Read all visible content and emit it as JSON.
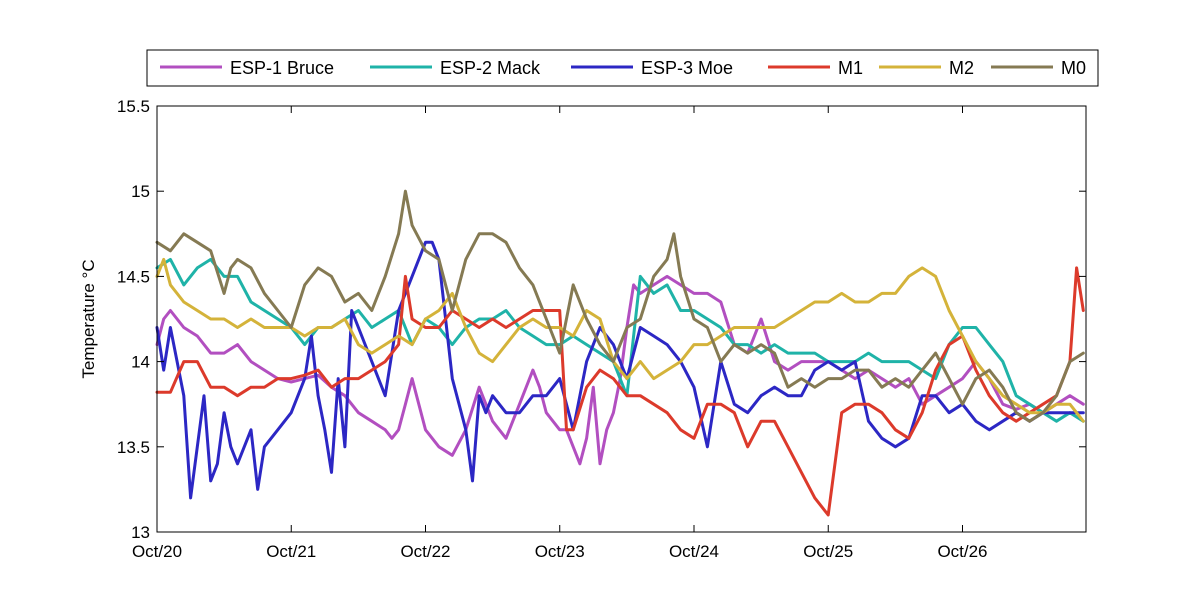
{
  "chart_data": {
    "type": "line",
    "title": "",
    "xlabel": "",
    "ylabel": "Temperature °C",
    "xlim": [
      "Oct/20",
      "Oct/26 ~22:00"
    ],
    "ylim": [
      13,
      15.5
    ],
    "yticks": [
      13,
      13.5,
      14,
      14.5,
      15,
      15.5
    ],
    "ytick_labels": [
      "13",
      "13.5",
      "14",
      "14.5",
      "15",
      "15.5"
    ],
    "xticks": [
      0,
      1,
      2,
      3,
      4,
      5,
      6
    ],
    "xtick_labels": [
      "Oct/20",
      "Oct/21",
      "Oct/22",
      "Oct/23",
      "Oct/24",
      "Oct/25",
      "Oct/26"
    ],
    "grid": false,
    "legend": {
      "placement": "top, outside plot, horizontal"
    },
    "series": [
      {
        "name": "ESP-1 Bruce",
        "color": "#b24fc0",
        "x": [
          0,
          0.05,
          0.1,
          0.2,
          0.3,
          0.4,
          0.5,
          0.6,
          0.7,
          0.8,
          0.9,
          1.0,
          1.1,
          1.2,
          1.3,
          1.4,
          1.5,
          1.6,
          1.7,
          1.75,
          1.8,
          1.85,
          1.9,
          2.0,
          2.1,
          2.2,
          2.3,
          2.4,
          2.5,
          2.6,
          2.7,
          2.8,
          2.85,
          2.9,
          3.0,
          3.05,
          3.1,
          3.15,
          3.2,
          3.25,
          3.3,
          3.35,
          3.4,
          3.45,
          3.5,
          3.55,
          3.6,
          3.7,
          3.8,
          3.9,
          4.0,
          4.1,
          4.2,
          4.3,
          4.4,
          4.5,
          4.6,
          4.7,
          4.8,
          4.9,
          5.0,
          5.1,
          5.2,
          5.3,
          5.4,
          5.5,
          5.6,
          5.7,
          5.8,
          5.9,
          6.0,
          6.1,
          6.2,
          6.3,
          6.4,
          6.5,
          6.6,
          6.7,
          6.8,
          6.9
        ],
        "y": [
          14.1,
          14.25,
          14.3,
          14.2,
          14.15,
          14.05,
          14.05,
          14.1,
          14.0,
          13.95,
          13.9,
          13.88,
          13.9,
          13.92,
          13.85,
          13.8,
          13.7,
          13.65,
          13.6,
          13.55,
          13.6,
          13.75,
          13.9,
          13.6,
          13.5,
          13.45,
          13.6,
          13.85,
          13.65,
          13.55,
          13.75,
          13.95,
          13.85,
          13.7,
          13.6,
          13.6,
          13.5,
          13.4,
          13.55,
          13.85,
          13.4,
          13.6,
          13.7,
          13.9,
          14.2,
          14.45,
          14.4,
          14.45,
          14.5,
          14.45,
          14.4,
          14.4,
          14.35,
          14.1,
          14.05,
          14.25,
          14.0,
          13.95,
          14.0,
          14.0,
          14.0,
          13.95,
          13.9,
          13.95,
          13.9,
          13.85,
          13.9,
          13.75,
          13.8,
          13.85,
          13.9,
          14.0,
          13.9,
          13.75,
          13.72,
          13.75,
          13.7,
          13.75,
          13.8,
          13.75
        ]
      },
      {
        "name": "ESP-2 Mack",
        "color": "#1fb3a8",
        "x": [
          0,
          0.1,
          0.2,
          0.3,
          0.4,
          0.5,
          0.6,
          0.7,
          0.8,
          0.9,
          1.0,
          1.1,
          1.2,
          1.3,
          1.4,
          1.5,
          1.6,
          1.7,
          1.8,
          1.9,
          2.0,
          2.1,
          2.2,
          2.3,
          2.4,
          2.5,
          2.6,
          2.7,
          2.8,
          2.9,
          3.0,
          3.1,
          3.2,
          3.3,
          3.4,
          3.5,
          3.6,
          3.7,
          3.8,
          3.9,
          4.0,
          4.1,
          4.2,
          4.3,
          4.4,
          4.5,
          4.6,
          4.7,
          4.8,
          4.9,
          5.0,
          5.1,
          5.2,
          5.3,
          5.4,
          5.5,
          5.6,
          5.7,
          5.8,
          5.9,
          6.0,
          6.1,
          6.2,
          6.3,
          6.4,
          6.5,
          6.6,
          6.7,
          6.8,
          6.9
        ],
        "y": [
          14.55,
          14.6,
          14.45,
          14.55,
          14.6,
          14.5,
          14.5,
          14.35,
          14.3,
          14.25,
          14.2,
          14.1,
          14.2,
          14.2,
          14.25,
          14.3,
          14.2,
          14.25,
          14.3,
          14.1,
          14.25,
          14.2,
          14.1,
          14.2,
          14.25,
          14.25,
          14.3,
          14.2,
          14.15,
          14.1,
          14.1,
          14.15,
          14.1,
          14.05,
          14.0,
          13.8,
          14.5,
          14.4,
          14.45,
          14.3,
          14.3,
          14.25,
          14.2,
          14.1,
          14.1,
          14.05,
          14.1,
          14.05,
          14.05,
          14.05,
          14.0,
          14.0,
          14.0,
          14.05,
          14.0,
          14.0,
          14.0,
          13.95,
          13.9,
          14.1,
          14.2,
          14.2,
          14.1,
          14.0,
          13.8,
          13.75,
          13.7,
          13.65,
          13.7,
          13.65
        ]
      },
      {
        "name": "ESP-3 Moe",
        "color": "#2c27c4",
        "x": [
          0,
          0.05,
          0.1,
          0.15,
          0.2,
          0.25,
          0.3,
          0.35,
          0.4,
          0.45,
          0.5,
          0.55,
          0.6,
          0.7,
          0.75,
          0.8,
          0.9,
          1.0,
          1.1,
          1.15,
          1.2,
          1.25,
          1.3,
          1.35,
          1.4,
          1.45,
          1.5,
          1.6,
          1.7,
          1.8,
          1.9,
          2.0,
          2.05,
          2.1,
          2.2,
          2.3,
          2.35,
          2.4,
          2.45,
          2.5,
          2.55,
          2.6,
          2.7,
          2.8,
          2.9,
          3.0,
          3.1,
          3.2,
          3.3,
          3.4,
          3.5,
          3.6,
          3.7,
          3.8,
          3.9,
          4.0,
          4.1,
          4.2,
          4.3,
          4.4,
          4.5,
          4.6,
          4.7,
          4.8,
          4.9,
          5.0,
          5.1,
          5.2,
          5.3,
          5.4,
          5.5,
          5.6,
          5.7,
          5.8,
          5.9,
          6.0,
          6.1,
          6.2,
          6.3,
          6.4,
          6.5,
          6.6,
          6.7,
          6.8,
          6.9
        ],
        "y": [
          14.2,
          13.95,
          14.2,
          14.0,
          13.8,
          13.2,
          13.5,
          13.8,
          13.3,
          13.4,
          13.7,
          13.5,
          13.4,
          13.6,
          13.25,
          13.5,
          13.6,
          13.7,
          13.9,
          14.15,
          13.8,
          13.6,
          13.35,
          13.9,
          13.5,
          14.3,
          14.2,
          14.0,
          13.8,
          14.3,
          14.5,
          14.7,
          14.7,
          14.6,
          13.9,
          13.6,
          13.3,
          13.8,
          13.7,
          13.8,
          13.75,
          13.7,
          13.7,
          13.8,
          13.8,
          13.9,
          13.6,
          14.0,
          14.2,
          14.1,
          13.9,
          14.2,
          14.15,
          14.1,
          14.0,
          13.85,
          13.5,
          14.0,
          13.75,
          13.7,
          13.8,
          13.85,
          13.8,
          13.8,
          13.95,
          14.0,
          13.95,
          14.0,
          13.65,
          13.55,
          13.5,
          13.55,
          13.8,
          13.8,
          13.7,
          13.75,
          13.65,
          13.6,
          13.65,
          13.7,
          13.65,
          13.7,
          13.7,
          13.7,
          13.7
        ]
      },
      {
        "name": "M1",
        "color": "#dc3a2b",
        "x": [
          0,
          0.1,
          0.2,
          0.3,
          0.4,
          0.5,
          0.6,
          0.7,
          0.8,
          0.9,
          1.0,
          1.1,
          1.2,
          1.3,
          1.4,
          1.5,
          1.6,
          1.7,
          1.8,
          1.85,
          1.9,
          2.0,
          2.1,
          2.2,
          2.3,
          2.4,
          2.5,
          2.6,
          2.7,
          2.8,
          2.9,
          3.0,
          3.05,
          3.1,
          3.2,
          3.3,
          3.4,
          3.5,
          3.6,
          3.7,
          3.8,
          3.9,
          4.0,
          4.1,
          4.2,
          4.3,
          4.4,
          4.5,
          4.6,
          4.7,
          4.8,
          4.9,
          5.0,
          5.1,
          5.2,
          5.3,
          5.4,
          5.5,
          5.6,
          5.7,
          5.8,
          5.9,
          6.0,
          6.1,
          6.2,
          6.3,
          6.4,
          6.5,
          6.6,
          6.7,
          6.8,
          6.85,
          6.9
        ],
        "y": [
          13.82,
          13.82,
          14.0,
          14.0,
          13.85,
          13.85,
          13.8,
          13.85,
          13.85,
          13.9,
          13.9,
          13.92,
          13.95,
          13.85,
          13.9,
          13.9,
          13.95,
          14.0,
          14.1,
          14.5,
          14.25,
          14.2,
          14.2,
          14.3,
          14.25,
          14.2,
          14.25,
          14.2,
          14.25,
          14.3,
          14.3,
          14.3,
          13.6,
          13.6,
          13.85,
          13.95,
          13.9,
          13.8,
          13.8,
          13.75,
          13.7,
          13.6,
          13.55,
          13.75,
          13.75,
          13.7,
          13.5,
          13.65,
          13.65,
          13.5,
          13.35,
          13.2,
          13.1,
          13.7,
          13.75,
          13.75,
          13.7,
          13.6,
          13.55,
          13.7,
          13.95,
          14.1,
          14.15,
          13.95,
          13.8,
          13.7,
          13.65,
          13.7,
          13.75,
          13.8,
          14.0,
          14.55,
          14.3
        ]
      },
      {
        "name": "M2",
        "color": "#d4b33a",
        "x": [
          0,
          0.05,
          0.1,
          0.2,
          0.3,
          0.4,
          0.5,
          0.6,
          0.7,
          0.8,
          0.9,
          1.0,
          1.1,
          1.2,
          1.3,
          1.4,
          1.5,
          1.6,
          1.7,
          1.8,
          1.9,
          2.0,
          2.1,
          2.2,
          2.3,
          2.4,
          2.5,
          2.6,
          2.7,
          2.8,
          2.9,
          3.0,
          3.1,
          3.2,
          3.3,
          3.4,
          3.5,
          3.6,
          3.7,
          3.8,
          3.9,
          4.0,
          4.1,
          4.2,
          4.3,
          4.4,
          4.5,
          4.6,
          4.7,
          4.8,
          4.9,
          5.0,
          5.1,
          5.2,
          5.3,
          5.4,
          5.5,
          5.6,
          5.7,
          5.8,
          5.9,
          6.0,
          6.1,
          6.2,
          6.3,
          6.4,
          6.5,
          6.6,
          6.7,
          6.8,
          6.9
        ],
        "y": [
          14.5,
          14.6,
          14.45,
          14.35,
          14.3,
          14.25,
          14.25,
          14.2,
          14.25,
          14.2,
          14.2,
          14.2,
          14.15,
          14.2,
          14.2,
          14.25,
          14.1,
          14.05,
          14.1,
          14.15,
          14.1,
          14.25,
          14.3,
          14.4,
          14.2,
          14.05,
          14.0,
          14.1,
          14.2,
          14.25,
          14.2,
          14.2,
          14.15,
          14.3,
          14.25,
          14.0,
          13.9,
          14.0,
          13.9,
          13.95,
          14.0,
          14.1,
          14.1,
          14.15,
          14.2,
          14.2,
          14.2,
          14.2,
          14.25,
          14.3,
          14.35,
          14.35,
          14.4,
          14.35,
          14.35,
          14.4,
          14.4,
          14.5,
          14.55,
          14.5,
          14.3,
          14.15,
          14.0,
          13.9,
          13.8,
          13.75,
          13.7,
          13.7,
          13.75,
          13.75,
          13.65
        ]
      },
      {
        "name": "M0",
        "color": "#857a53",
        "x": [
          0,
          0.1,
          0.2,
          0.3,
          0.4,
          0.5,
          0.55,
          0.6,
          0.7,
          0.8,
          0.9,
          1.0,
          1.1,
          1.2,
          1.3,
          1.4,
          1.5,
          1.6,
          1.7,
          1.8,
          1.85,
          1.9,
          2.0,
          2.1,
          2.2,
          2.3,
          2.4,
          2.5,
          2.6,
          2.7,
          2.8,
          2.9,
          3.0,
          3.1,
          3.2,
          3.3,
          3.4,
          3.5,
          3.6,
          3.7,
          3.8,
          3.85,
          3.9,
          4.0,
          4.1,
          4.2,
          4.3,
          4.4,
          4.5,
          4.6,
          4.7,
          4.8,
          4.9,
          5.0,
          5.1,
          5.2,
          5.3,
          5.4,
          5.5,
          5.6,
          5.7,
          5.8,
          5.9,
          6.0,
          6.1,
          6.2,
          6.3,
          6.4,
          6.5,
          6.6,
          6.7,
          6.8,
          6.9
        ],
        "y": [
          14.7,
          14.65,
          14.75,
          14.7,
          14.65,
          14.4,
          14.55,
          14.6,
          14.55,
          14.4,
          14.3,
          14.2,
          14.45,
          14.55,
          14.5,
          14.35,
          14.4,
          14.3,
          14.5,
          14.75,
          15.0,
          14.8,
          14.65,
          14.6,
          14.3,
          14.6,
          14.75,
          14.75,
          14.7,
          14.55,
          14.45,
          14.25,
          14.05,
          14.45,
          14.25,
          14.1,
          14.0,
          14.2,
          14.25,
          14.5,
          14.6,
          14.75,
          14.5,
          14.25,
          14.2,
          14.0,
          14.1,
          14.05,
          14.1,
          14.05,
          13.85,
          13.9,
          13.85,
          13.9,
          13.9,
          13.95,
          13.95,
          13.85,
          13.9,
          13.85,
          13.95,
          14.05,
          13.9,
          13.75,
          13.9,
          13.95,
          13.85,
          13.7,
          13.65,
          13.7,
          13.8,
          14.0,
          14.05
        ]
      }
    ]
  }
}
